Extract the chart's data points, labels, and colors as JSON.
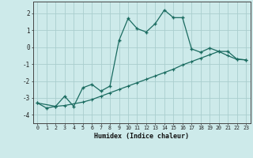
{
  "xlabel": "Humidex (Indice chaleur)",
  "background_color": "#cdeaea",
  "grid_color": "#aacece",
  "line_color": "#1a6b60",
  "ylim": [
    -4.5,
    2.7
  ],
  "xlim": [
    -0.5,
    23.5
  ],
  "yticks": [
    -4,
    -3,
    -2,
    -1,
    0,
    1,
    2
  ],
  "xticks": [
    0,
    1,
    2,
    3,
    4,
    5,
    6,
    7,
    8,
    9,
    10,
    11,
    12,
    13,
    14,
    15,
    16,
    17,
    18,
    19,
    20,
    21,
    22,
    23
  ],
  "line1_x": [
    0,
    1,
    2,
    3,
    4,
    5,
    6,
    7,
    8,
    9,
    10,
    11,
    12,
    13,
    14,
    15,
    16,
    17,
    18,
    19,
    20,
    21,
    22,
    23
  ],
  "line1_y": [
    -3.3,
    -3.6,
    -3.5,
    -2.9,
    -3.5,
    -2.4,
    -2.2,
    -2.6,
    -2.3,
    0.4,
    1.7,
    1.1,
    0.9,
    1.4,
    2.2,
    1.75,
    1.75,
    -0.1,
    -0.3,
    -0.05,
    -0.25,
    -0.25,
    -0.7,
    -0.75
  ],
  "line2_x": [
    0,
    2,
    3,
    5,
    6,
    7,
    8,
    9,
    10,
    11,
    12,
    13,
    14,
    15,
    16,
    17,
    18,
    19,
    20,
    21,
    22,
    23
  ],
  "line2_y": [
    -3.3,
    -3.5,
    -3.45,
    -3.25,
    -3.1,
    -2.9,
    -2.7,
    -2.5,
    -2.3,
    -2.1,
    -1.9,
    -1.7,
    -1.5,
    -1.3,
    -1.05,
    -0.85,
    -0.65,
    -0.45,
    -0.25,
    -0.5,
    -0.72,
    -0.75
  ]
}
